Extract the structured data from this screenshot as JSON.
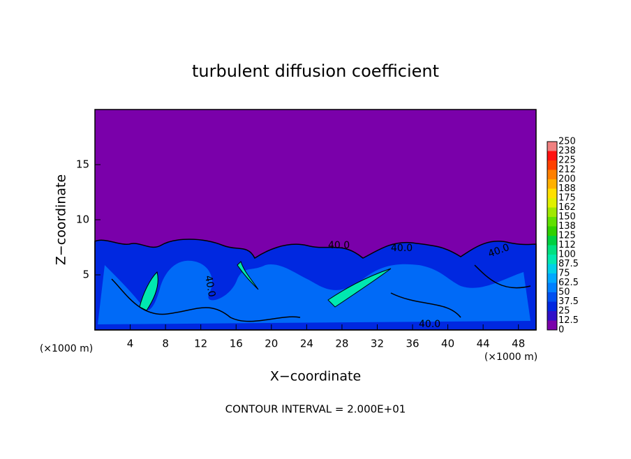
{
  "chart_data": {
    "type": "contour",
    "title": "turbulent diffusion coefficient",
    "x_label": "X−coordinate",
    "y_label": "Z−coordinate",
    "x_unit": "(×1000 m)",
    "y_unit": "(×1000 m)",
    "annotation": "CONTOUR INTERVAL = 2.000E+01",
    "contour_label": "40.0",
    "xlim": [
      0,
      50
    ],
    "xticks": [
      4,
      8,
      12,
      16,
      20,
      24,
      28,
      32,
      36,
      40,
      44,
      48
    ],
    "ylim": [
      0,
      20
    ],
    "yticks": [
      5,
      10,
      15
    ],
    "background_color": "#7a00aa",
    "colorbar": {
      "lim": [
        0,
        250
      ],
      "ticks": [
        0,
        12.5,
        25,
        37.5,
        50,
        62.5,
        75,
        87.5,
        100,
        {
          "value": 112.5,
          "label": "112"
        },
        125,
        {
          "value": 137.5,
          "label": "138"
        },
        150,
        {
          "value": 162.5,
          "label": "162"
        },
        175,
        {
          "value": 187.5,
          "label": "188"
        },
        200,
        {
          "value": 212.5,
          "label": "212"
        },
        225,
        {
          "value": 237.5,
          "label": "238"
        },
        250
      ],
      "colors": [
        "#7a00aa",
        "#3010c8",
        "#0028e0",
        "#0050f0",
        "#0080ff",
        "#00a8ff",
        "#00d0e8",
        "#00e8b0",
        "#00e080",
        "#00d040",
        "#30d000",
        "#60e000",
        "#a0e800",
        "#e0f000",
        "#ffe000",
        "#ffb000",
        "#ff8000",
        "#ff4000",
        "#ff1010",
        "#f08080"
      ]
    }
  }
}
